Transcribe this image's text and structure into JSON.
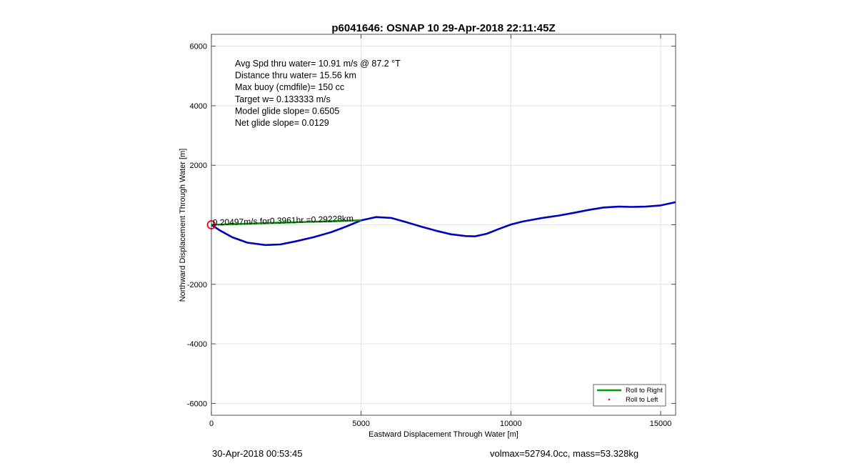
{
  "chart_data": {
    "type": "line",
    "title": "p6041646: OSNAP 10 29-Apr-2018 22:11:45Z",
    "xlabel": "Eastward Displacement Through Water [m]",
    "ylabel": "Northward Displacement Through Water [m]",
    "xlim": [
      0,
      15500
    ],
    "ylim": [
      -6400,
      6400
    ],
    "xticks": [
      0,
      5000,
      10000,
      15000
    ],
    "xtick_labels": [
      "0",
      "5000",
      "10000",
      "15000"
    ],
    "yticks": [
      -6000,
      -4000,
      -2000,
      0,
      2000,
      4000,
      6000
    ],
    "ytick_labels": [
      "-6000",
      "-4000",
      "-2000",
      "",
      "2000",
      "4000",
      "6000"
    ],
    "grid": true,
    "legend_location": "bottom-right",
    "annotations": [
      "Avg Spd thru water= 10.91 m/s @  87.2 °T",
      "Distance thru water= 15.56 km",
      "Max buoy (cmdfile)= 150 cc",
      "Target w= 0.133333 m/s",
      "Model glide slope= 0.6505",
      "Net glide slope= 0.0129"
    ],
    "segment_label": "0.20497m/s for0.3961hr =0.29228km",
    "series": [
      {
        "color": "#0000c0",
        "x": [
          0,
          300,
          700,
          1200,
          1800,
          2300,
          2800,
          3400,
          4000,
          4500,
          5000,
          5500,
          6000,
          6500,
          7000,
          7500,
          8000,
          8500,
          8800,
          9200,
          9600,
          10000,
          10400,
          11000,
          11600,
          12100,
          12600,
          13100,
          13600,
          14000,
          14500,
          15000,
          15500
        ],
        "y": [
          0,
          -200,
          -420,
          -600,
          -680,
          -660,
          -560,
          -420,
          -250,
          -60,
          150,
          260,
          230,
          90,
          -60,
          -200,
          -320,
          -380,
          -390,
          -300,
          -140,
          10,
          110,
          220,
          310,
          400,
          500,
          580,
          610,
          600,
          610,
          650,
          760
        ]
      },
      {
        "name": "Roll to Right",
        "color": "#00a000",
        "x": [
          0,
          5000
        ],
        "y": [
          0,
          150
        ]
      },
      {
        "name": "Roll to Left",
        "color": "#ff0000",
        "x": [],
        "y": []
      }
    ],
    "start_marker": {
      "x": 0,
      "y": 0,
      "color": "#ff0000"
    }
  },
  "footer": {
    "left": "30-Apr-2018 00:53:45",
    "right": "volmax=52794.0cc, mass=53.328kg"
  }
}
